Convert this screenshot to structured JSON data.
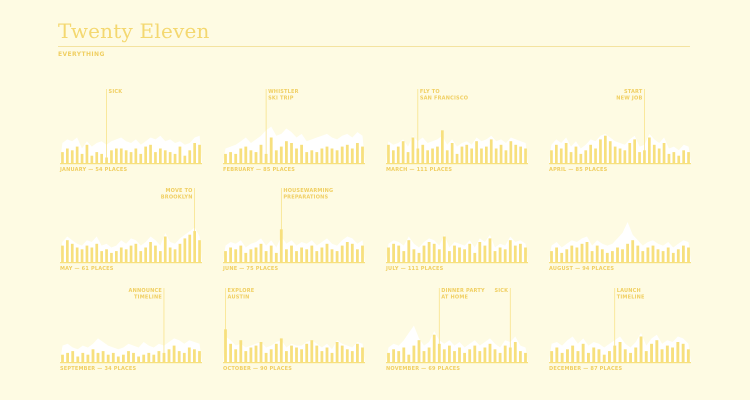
{
  "page": {
    "title": "Twenty Eleven",
    "subtitle": "EVERYTHING"
  },
  "colors": {
    "background": "#fefbe3",
    "bar": "#f7e07e",
    "everything": "#ffffff",
    "text": "#f0cf62"
  },
  "chart_data": [
    {
      "type": "bar",
      "label": "JANUARY — 54 PLACES",
      "places": 54,
      "values": [
        6,
        8,
        7,
        9,
        5,
        10,
        4,
        6,
        5,
        3,
        7,
        8,
        8,
        7,
        6,
        8,
        5,
        9,
        10,
        6,
        8,
        7,
        6,
        5,
        9,
        4,
        7,
        11,
        10
      ],
      "background_values": [
        11,
        13,
        12,
        14,
        8,
        12,
        9,
        11,
        12,
        10,
        12,
        13,
        14,
        12,
        11,
        13,
        10,
        12,
        14,
        13,
        15,
        12,
        13,
        11,
        12,
        10,
        11,
        14,
        15
      ],
      "annotations": [
        {
          "text": [
            "SICK"
          ],
          "index": 9
        }
      ]
    },
    {
      "type": "bar",
      "label": "FEBRUARY — 85 PLACES",
      "places": 85,
      "values": [
        5,
        6,
        5,
        8,
        9,
        7,
        6,
        10,
        5,
        14,
        7,
        9,
        12,
        11,
        8,
        10,
        6,
        7,
        6,
        8,
        9,
        8,
        7,
        9,
        10,
        8,
        11,
        9
      ],
      "background_values": [
        8,
        9,
        10,
        12,
        14,
        11,
        13,
        15,
        18,
        20,
        15,
        16,
        19,
        17,
        14,
        16,
        12,
        13,
        14,
        15,
        16,
        14,
        13,
        15,
        16,
        14,
        17,
        15
      ],
      "annotations": [
        {
          "text": [
            "WHISTLER",
            "SKI TRIP"
          ],
          "index": 8
        }
      ]
    },
    {
      "type": "bar",
      "label": "MARCH — 111 PLACES",
      "places": 111,
      "values": [
        10,
        7,
        9,
        12,
        6,
        14,
        8,
        10,
        7,
        8,
        9,
        18,
        7,
        11,
        5,
        9,
        10,
        8,
        12,
        8,
        9,
        13,
        8,
        10,
        7,
        12,
        10,
        9,
        8
      ],
      "background_values": [
        12,
        10,
        11,
        13,
        9,
        15,
        12,
        14,
        11,
        12,
        13,
        15,
        10,
        13,
        9,
        11,
        12,
        10,
        14,
        12,
        13,
        15,
        12,
        13,
        11,
        14,
        13,
        12,
        11
      ],
      "annotations": [
        {
          "text": [
            "FLY TO",
            "SAN FRANCISCO"
          ],
          "index": 6
        }
      ]
    },
    {
      "type": "bar",
      "label": "APRIL — 85 PLACES",
      "places": 85,
      "values": [
        7,
        10,
        8,
        11,
        6,
        9,
        5,
        7,
        10,
        8,
        13,
        15,
        12,
        9,
        8,
        7,
        11,
        13,
        6,
        7,
        14,
        10,
        8,
        11,
        5,
        6,
        4,
        7,
        6
      ],
      "background_values": [
        10,
        13,
        11,
        14,
        9,
        12,
        8,
        10,
        13,
        12,
        15,
        16,
        14,
        12,
        11,
        10,
        13,
        15,
        9,
        10,
        16,
        13,
        11,
        14,
        8,
        9,
        7,
        10,
        9
      ],
      "annotations": [
        {
          "text": [
            "START",
            "NEW JOB"
          ],
          "index": 19
        }
      ]
    },
    {
      "type": "bar",
      "label": "MAY — 61 PLACES",
      "places": 61,
      "values": [
        9,
        12,
        10,
        8,
        7,
        9,
        8,
        10,
        6,
        7,
        5,
        6,
        8,
        7,
        9,
        10,
        6,
        8,
        11,
        9,
        6,
        14,
        8,
        7,
        10,
        13,
        15,
        17,
        12
      ],
      "background_values": [
        11,
        14,
        12,
        10,
        9,
        12,
        11,
        14,
        9,
        10,
        8,
        9,
        12,
        10,
        13,
        12,
        9,
        11,
        14,
        12,
        9,
        16,
        11,
        10,
        13,
        15,
        17,
        19,
        14
      ],
      "annotations": [
        {
          "text": [
            "MOVE TO",
            "BROOKLYN"
          ],
          "index": 27
        }
      ]
    },
    {
      "type": "bar",
      "label": "JUNE — 75 PLACES",
      "places": 75,
      "values": [
        6,
        8,
        7,
        9,
        5,
        7,
        8,
        10,
        6,
        9,
        5,
        18,
        7,
        9,
        6,
        8,
        7,
        9,
        6,
        8,
        10,
        7,
        6,
        9,
        11,
        10,
        7,
        9
      ],
      "background_values": [
        9,
        11,
        10,
        12,
        8,
        10,
        11,
        13,
        9,
        12,
        8,
        14,
        10,
        12,
        9,
        11,
        10,
        12,
        9,
        11,
        13,
        10,
        9,
        12,
        14,
        13,
        10,
        12
      ],
      "annotations": [
        {
          "text": [
            "HOUSEWARMING",
            "PREPARATIONS"
          ],
          "index": 11
        }
      ]
    },
    {
      "type": "bar",
      "label": "JULY — 111 PLACES",
      "places": 111,
      "values": [
        8,
        10,
        9,
        6,
        12,
        7,
        5,
        9,
        11,
        10,
        7,
        14,
        6,
        9,
        8,
        7,
        10,
        5,
        11,
        9,
        13,
        6,
        8,
        7,
        12,
        9,
        10,
        8
      ],
      "background_values": [
        10,
        12,
        11,
        9,
        14,
        10,
        8,
        11,
        13,
        12,
        9,
        15,
        8,
        11,
        10,
        9,
        12,
        8,
        13,
        11,
        15,
        8,
        10,
        9,
        14,
        11,
        12,
        10
      ]
    },
    {
      "type": "bar",
      "label": "AUGUST — 94 PLACES",
      "places": 94,
      "values": [
        6,
        8,
        5,
        7,
        9,
        8,
        10,
        11,
        6,
        9,
        7,
        5,
        6,
        8,
        7,
        10,
        12,
        9,
        6,
        8,
        9,
        7,
        6,
        8,
        5,
        7,
        9,
        8
      ],
      "background_values": [
        9,
        11,
        8,
        10,
        12,
        11,
        13,
        14,
        9,
        12,
        10,
        9,
        10,
        13,
        16,
        22,
        15,
        12,
        9,
        11,
        12,
        10,
        9,
        11,
        8,
        10,
        12,
        11
      ]
    },
    {
      "type": "bar",
      "label": "SEPTEMBER — 34 PLACES",
      "places": 34,
      "values": [
        4,
        5,
        6,
        3,
        5,
        4,
        7,
        5,
        6,
        4,
        5,
        3,
        4,
        6,
        5,
        3,
        4,
        5,
        4,
        6,
        5,
        7,
        9,
        6,
        5,
        8,
        7,
        6
      ],
      "background_values": [
        9,
        10,
        8,
        7,
        9,
        8,
        10,
        13,
        11,
        9,
        8,
        7,
        8,
        10,
        9,
        8,
        11,
        9,
        8,
        10,
        9,
        11,
        13,
        12,
        10,
        12,
        11,
        10
      ],
      "annotations": [
        {
          "text": [
            "ANNOUNCE",
            "TIMELINE"
          ],
          "index": 20
        }
      ]
    },
    {
      "type": "bar",
      "label": "OCTOBER — 90 PLACES",
      "places": 90,
      "values": [
        18,
        10,
        7,
        12,
        6,
        8,
        9,
        11,
        5,
        7,
        10,
        13,
        6,
        9,
        8,
        7,
        10,
        12,
        9,
        6,
        8,
        5,
        11,
        9,
        7,
        6,
        10,
        8
      ],
      "background_values": [
        14,
        12,
        9,
        10,
        8,
        9,
        10,
        11,
        8,
        9,
        11,
        12,
        8,
        10,
        9,
        9,
        11,
        12,
        10,
        8,
        10,
        7,
        12,
        10,
        9,
        8,
        11,
        10
      ],
      "annotations": [
        {
          "text": [
            "EXPLORE",
            "AUSTIN"
          ],
          "index": 0
        }
      ]
    },
    {
      "type": "bar",
      "label": "NOVEMBER — 69 PLACES",
      "places": 69,
      "values": [
        5,
        7,
        6,
        8,
        4,
        9,
        12,
        6,
        8,
        15,
        10,
        7,
        9,
        6,
        8,
        5,
        7,
        9,
        6,
        8,
        10,
        7,
        5,
        9,
        8,
        11,
        6,
        5
      ],
      "background_values": [
        8,
        10,
        9,
        12,
        16,
        20,
        13,
        9,
        11,
        17,
        12,
        10,
        12,
        9,
        11,
        8,
        10,
        12,
        9,
        11,
        13,
        10,
        8,
        12,
        11,
        14,
        9,
        8
      ],
      "annotations": [
        {
          "text": [
            "DINNER PARTY",
            "AT HOME"
          ],
          "index": 10
        },
        {
          "text": [
            "SICK"
          ],
          "index": 24
        }
      ]
    },
    {
      "type": "bar",
      "label": "DECEMBER — 87 PLACES",
      "places": 87,
      "values": [
        6,
        8,
        5,
        7,
        9,
        6,
        10,
        5,
        8,
        7,
        4,
        6,
        9,
        11,
        7,
        5,
        8,
        14,
        6,
        10,
        12,
        7,
        9,
        8,
        11,
        10,
        7
      ],
      "background_values": [
        10,
        11,
        9,
        12,
        14,
        10,
        13,
        9,
        11,
        10,
        8,
        10,
        12,
        14,
        10,
        8,
        11,
        16,
        9,
        13,
        15,
        10,
        12,
        11,
        14,
        13,
        10
      ],
      "annotations": [
        {
          "text": [
            "LAUNCH",
            "TIMELINE"
          ],
          "index": 12
        }
      ]
    }
  ]
}
